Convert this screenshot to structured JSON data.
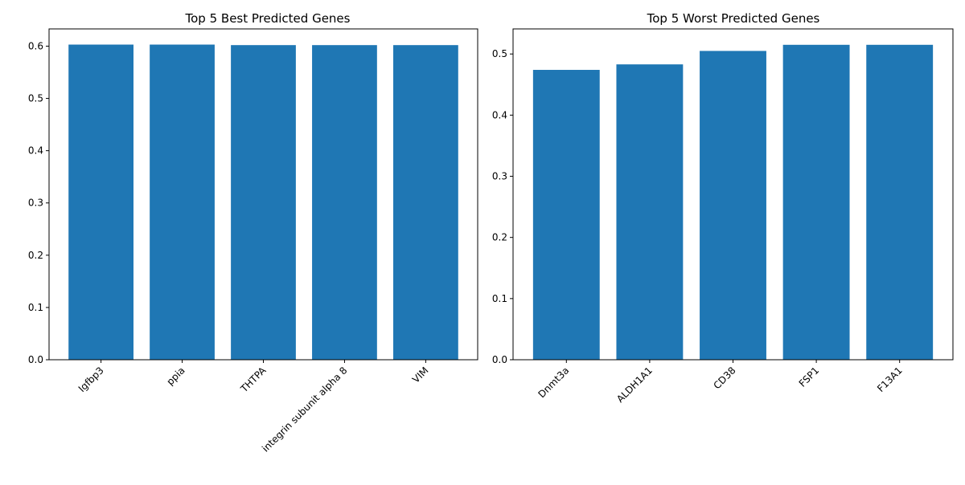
{
  "figure": {
    "background": "#ffffff"
  },
  "chart_data": [
    {
      "type": "bar",
      "title": "Top 5 Best Predicted Genes",
      "xlabel": "",
      "ylabel": "",
      "categories": [
        "Igfbp3",
        "ppia",
        "THTPA",
        "integrin subunit alpha 8",
        "VIM"
      ],
      "values": [
        0.603,
        0.603,
        0.602,
        0.602,
        0.602
      ],
      "ylim": [
        0,
        0.633
      ],
      "yticks": [
        0.0,
        0.1,
        0.2,
        0.3,
        0.4,
        0.5,
        0.6
      ],
      "ytick_labels": [
        "0.0",
        "0.1",
        "0.2",
        "0.3",
        "0.4",
        "0.5",
        "0.6"
      ],
      "bar_color": "#1f77b4",
      "grid": false,
      "xtick_rotation": 45
    },
    {
      "type": "bar",
      "title": "Top 5 Worst Predicted Genes",
      "xlabel": "",
      "ylabel": "",
      "categories": [
        "Dnmt3a",
        "ALDH1A1",
        "CD38",
        "FSP1",
        "F13A1"
      ],
      "values": [
        0.474,
        0.483,
        0.505,
        0.515,
        0.515
      ],
      "ylim": [
        0,
        0.541
      ],
      "yticks": [
        0.0,
        0.1,
        0.2,
        0.3,
        0.4,
        0.5
      ],
      "ytick_labels": [
        "0.0",
        "0.1",
        "0.2",
        "0.3",
        "0.4",
        "0.5"
      ],
      "bar_color": "#1f77b4",
      "grid": false,
      "xtick_rotation": 45
    }
  ]
}
